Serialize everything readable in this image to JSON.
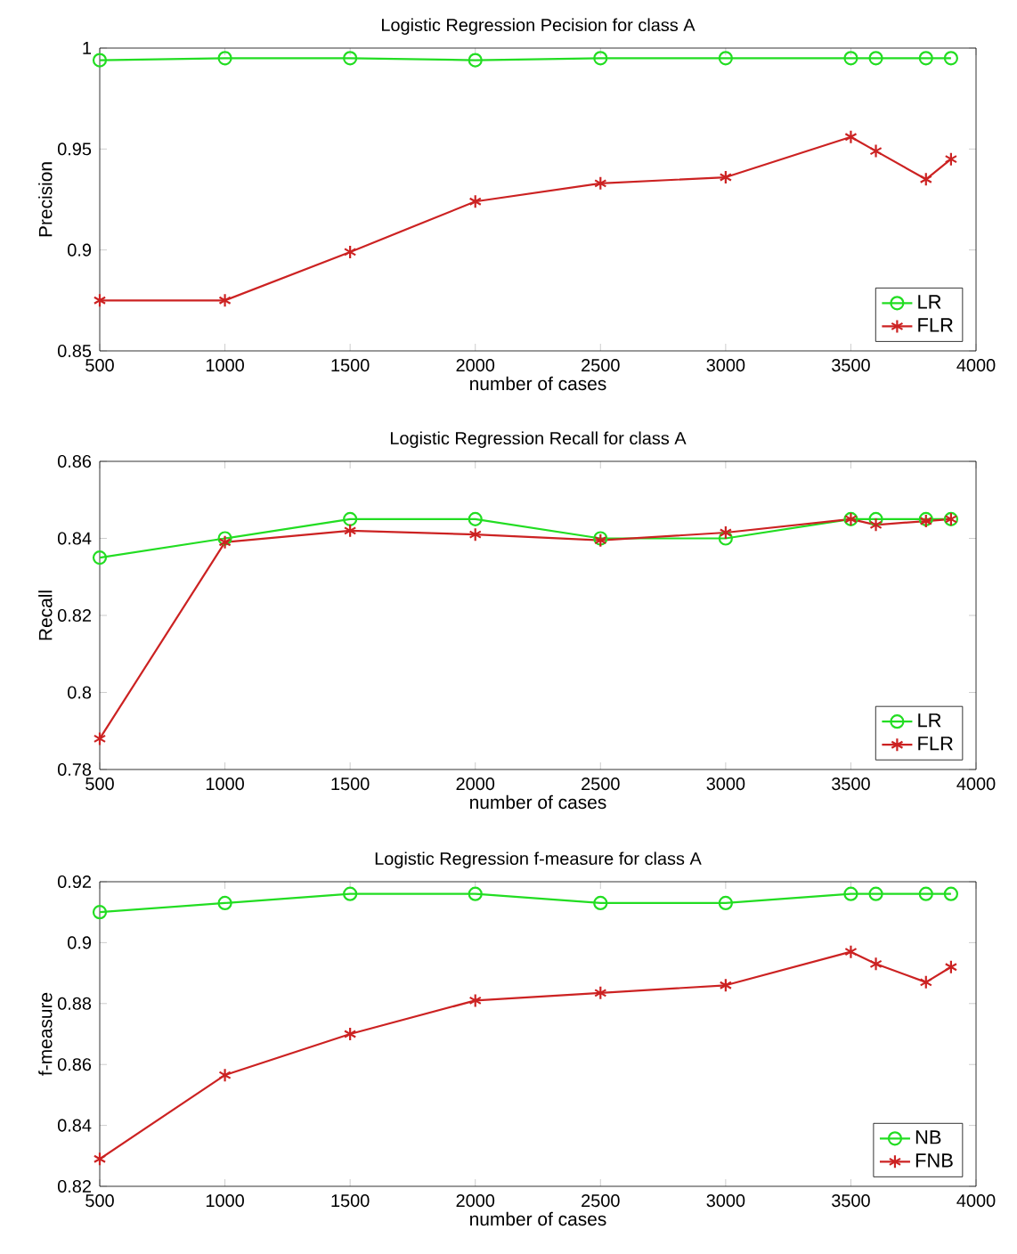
{
  "chart_data": [
    {
      "type": "line",
      "title": "Logistic Regression Pecision for class A",
      "xlabel": "number of cases",
      "ylabel": "Precision",
      "x": [
        500,
        1000,
        1500,
        2000,
        2500,
        3000,
        3500,
        3600,
        3800,
        3900
      ],
      "series": [
        {
          "name": "LR",
          "color": "#22dd22",
          "marker": "circle",
          "values": [
            0.994,
            0.995,
            0.995,
            0.994,
            0.995,
            0.995,
            0.995,
            0.995,
            0.995,
            0.995
          ]
        },
        {
          "name": "FLR",
          "color": "#cc2222",
          "marker": "cross",
          "values": [
            0.875,
            0.875,
            0.899,
            0.924,
            0.933,
            0.936,
            0.956,
            0.949,
            0.935,
            0.945
          ]
        }
      ],
      "xlim": [
        500,
        4000
      ],
      "xticks": [
        500,
        1000,
        1500,
        2000,
        2500,
        3000,
        3500,
        4000
      ],
      "ylim": [
        0.85,
        1
      ],
      "yticks": [
        0.85,
        0.9,
        0.95,
        1
      ],
      "grid": false,
      "legend": "bottom right"
    },
    {
      "type": "line",
      "title": "Logistic Regression Recall for class A",
      "xlabel": "number of cases",
      "ylabel": "Recall",
      "x": [
        500,
        1000,
        1500,
        2000,
        2500,
        3000,
        3500,
        3600,
        3800,
        3900
      ],
      "series": [
        {
          "name": "LR",
          "color": "#22dd22",
          "marker": "circle",
          "values": [
            0.835,
            0.84,
            0.845,
            0.845,
            0.84,
            0.84,
            0.845,
            0.845,
            0.845,
            0.845
          ]
        },
        {
          "name": "FLR",
          "color": "#cc2222",
          "marker": "cross",
          "values": [
            0.788,
            0.839,
            0.842,
            0.841,
            0.8395,
            0.8415,
            0.845,
            0.8435,
            0.8445,
            0.845
          ]
        }
      ],
      "xlim": [
        500,
        4000
      ],
      "xticks": [
        500,
        1000,
        1500,
        2000,
        2500,
        3000,
        3500,
        4000
      ],
      "ylim": [
        0.78,
        0.86
      ],
      "yticks": [
        0.78,
        0.8,
        0.82,
        0.84,
        0.86
      ],
      "grid": false,
      "legend": "bottom right"
    },
    {
      "type": "line",
      "title": "Logistic Regression f-measure for class A",
      "xlabel": "number of cases",
      "ylabel": "f-measure",
      "x": [
        500,
        1000,
        1500,
        2000,
        2500,
        3000,
        3500,
        3600,
        3800,
        3900
      ],
      "series": [
        {
          "name": "NB",
          "color": "#22dd22",
          "marker": "circle",
          "values": [
            0.91,
            0.913,
            0.916,
            0.916,
            0.913,
            0.913,
            0.916,
            0.916,
            0.916,
            0.916
          ]
        },
        {
          "name": "FNB",
          "color": "#cc2222",
          "marker": "cross",
          "values": [
            0.829,
            0.8565,
            0.87,
            0.881,
            0.8835,
            0.886,
            0.897,
            0.893,
            0.887,
            0.892
          ]
        }
      ],
      "xlim": [
        500,
        4000
      ],
      "xticks": [
        500,
        1000,
        1500,
        2000,
        2500,
        3000,
        3500,
        4000
      ],
      "ylim": [
        0.82,
        0.92
      ],
      "yticks": [
        0.82,
        0.84,
        0.86,
        0.88,
        0.9,
        0.92
      ],
      "grid": false,
      "legend": "bottom right"
    }
  ]
}
